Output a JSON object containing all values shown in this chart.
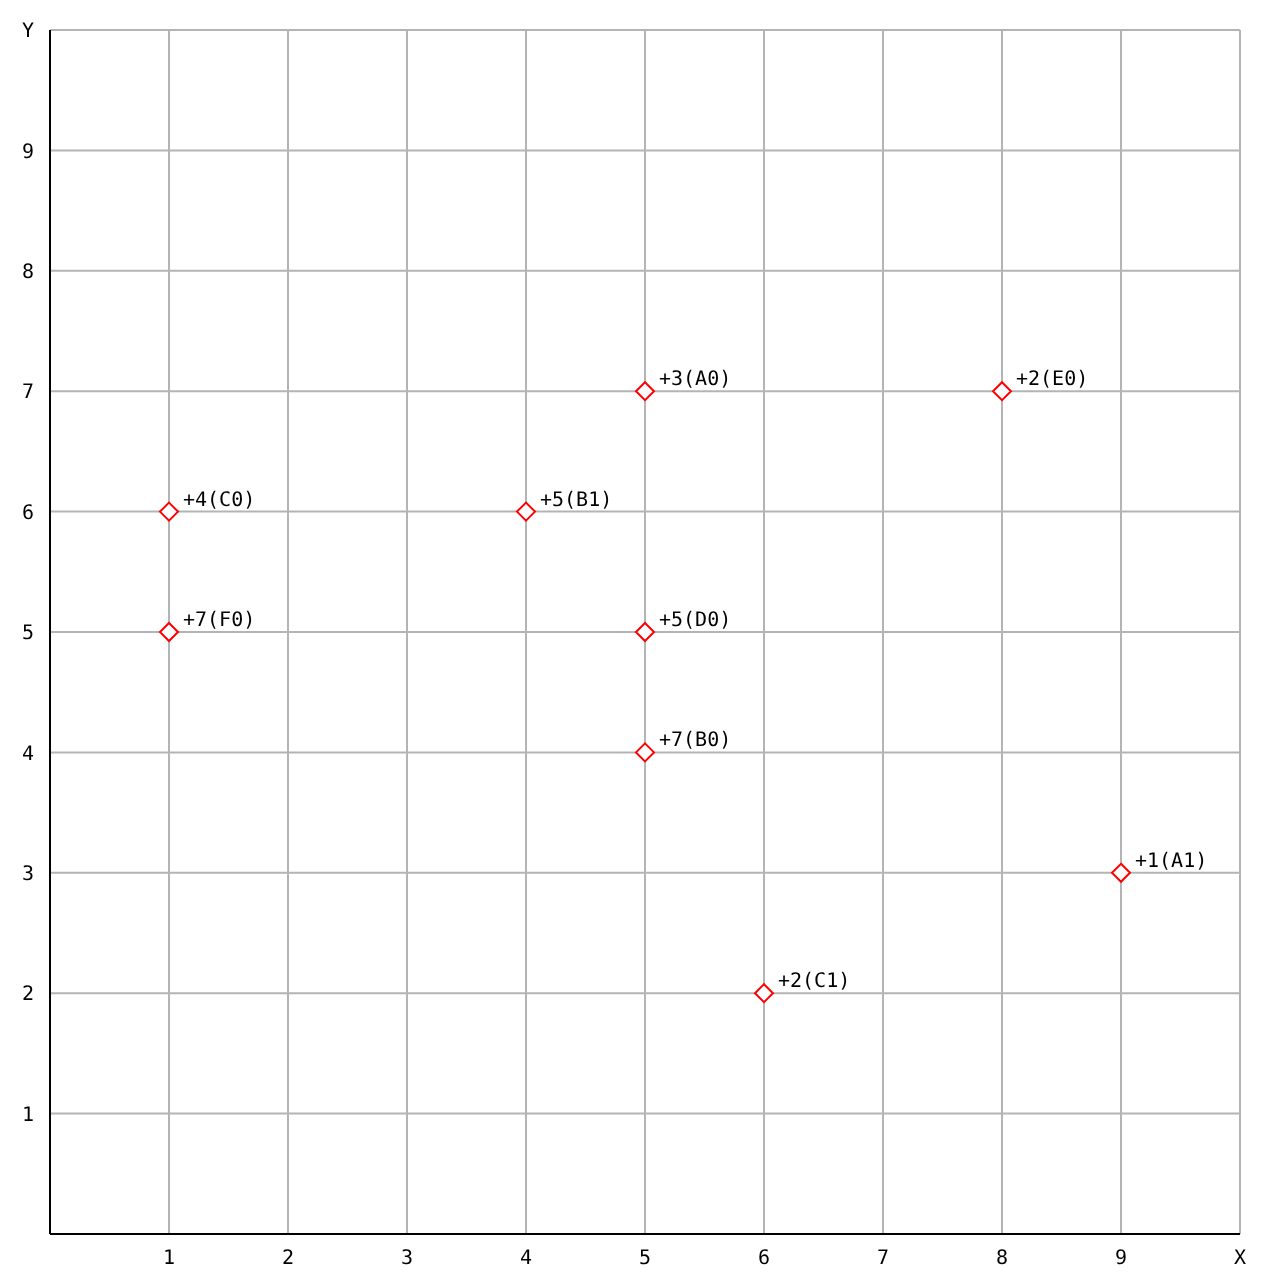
{
  "chart_data": {
    "type": "scatter",
    "xlim": [
      0,
      10
    ],
    "ylim": [
      0,
      10
    ],
    "xticks": [
      1,
      2,
      3,
      4,
      5,
      6,
      7,
      8,
      9,
      {
        "value": 10,
        "label": "X"
      }
    ],
    "yticks": [
      1,
      2,
      3,
      4,
      5,
      6,
      7,
      8,
      9,
      {
        "value": 10,
        "label": "Y"
      }
    ],
    "grid": true,
    "marker": "diamond",
    "legend": false,
    "series": [
      {
        "color": "#ff0000",
        "x": [
          5,
          8,
          1,
          4,
          1,
          5,
          5,
          9,
          6
        ],
        "values": [
          7,
          7,
          6,
          6,
          5,
          5,
          4,
          3,
          2
        ]
      }
    ],
    "annotations": [
      {
        "text": "+3(A0)",
        "x": 5,
        "y": 7
      },
      {
        "text": "+2(E0)",
        "x": 8,
        "y": 7
      },
      {
        "text": "+4(C0)",
        "x": 1,
        "y": 6
      },
      {
        "text": "+5(B1)",
        "x": 4,
        "y": 6
      },
      {
        "text": "+7(F0)",
        "x": 1,
        "y": 5
      },
      {
        "text": "+5(D0)",
        "x": 5,
        "y": 5
      },
      {
        "text": "+7(B0)",
        "x": 5,
        "y": 4
      },
      {
        "text": "+1(A1)",
        "x": 9,
        "y": 3
      },
      {
        "text": "+2(C1)",
        "x": 6,
        "y": 2
      }
    ]
  }
}
